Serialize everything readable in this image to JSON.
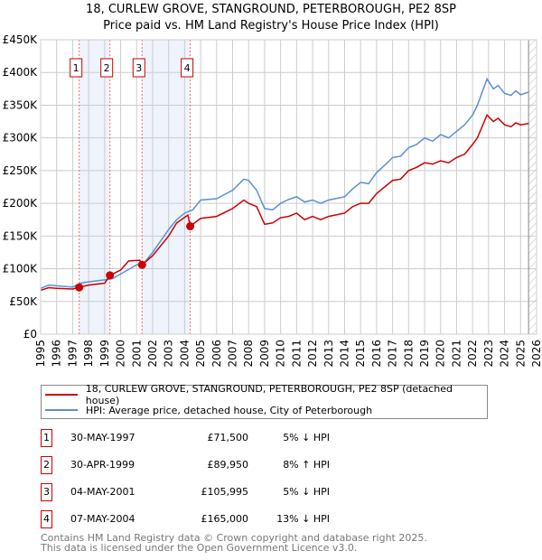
{
  "chart_data": {
    "type": "line",
    "title": "18, CURLEW GROVE, STANGROUND, PETERBOROUGH, PE2 8SP",
    "subtitle": "Price paid vs. HM Land Registry's House Price Index (HPI)",
    "xlim": [
      1995,
      2026
    ],
    "ylim": [
      0,
      450000
    ],
    "yticks": [
      0,
      50000,
      100000,
      150000,
      200000,
      250000,
      300000,
      350000,
      400000,
      450000
    ],
    "ytick_labels": [
      "£0",
      "£50K",
      "£100K",
      "£150K",
      "£200K",
      "£250K",
      "£300K",
      "£350K",
      "£400K",
      "£450K"
    ],
    "xticks": [
      "1995",
      "1996",
      "1997",
      "1998",
      "1999",
      "2000",
      "2001",
      "2002",
      "2003",
      "2004",
      "2005",
      "2006",
      "2007",
      "2008",
      "2009",
      "2010",
      "2011",
      "2012",
      "2013",
      "2014",
      "2015",
      "2016",
      "2017",
      "2018",
      "2019",
      "2020",
      "2021",
      "2022",
      "2023",
      "2024",
      "2025",
      "2026"
    ],
    "grid": true,
    "forecast_start": 2025.5,
    "series": [
      {
        "name": "18, CURLEW GROVE, STANGROUND, PETERBOROUGH, PE2 8SP (detached house)",
        "color": "#cc0000",
        "x": [
          1995,
          1995.5,
          1996,
          1997,
          1997.4,
          1998,
          1999,
          1999.33,
          2000,
          2000.5,
          2001.2,
          2001.34,
          2002,
          2003,
          2003.5,
          2004.2,
          2004.35,
          2005,
          2006,
          2007,
          2007.7,
          2008,
          2008.5,
          2009,
          2009.5,
          2010,
          2010.5,
          2011,
          2011.5,
          2012,
          2012.5,
          2013,
          2014,
          2014.5,
          2015,
          2015.5,
          2016,
          2016.5,
          2017,
          2017.5,
          2018,
          2018.5,
          2019,
          2019.5,
          2020,
          2020.5,
          2021,
          2021.5,
          2022,
          2022.3,
          2022.9,
          2023.3,
          2023.6,
          2024,
          2024.4,
          2024.7,
          2025,
          2025.5
        ],
        "y": [
          67000,
          71000,
          70000,
          69000,
          71500,
          75000,
          78000,
          89950,
          98000,
          112000,
          113000,
          105995,
          120000,
          150000,
          170000,
          182000,
          165000,
          177000,
          180000,
          192000,
          205000,
          200000,
          195000,
          168000,
          170000,
          178000,
          180000,
          185000,
          175000,
          180000,
          175000,
          180000,
          185000,
          195000,
          200000,
          200000,
          215000,
          225000,
          235000,
          237000,
          250000,
          255000,
          262000,
          260000,
          265000,
          262000,
          270000,
          275000,
          290000,
          300000,
          335000,
          325000,
          330000,
          320000,
          317000,
          323000,
          320000,
          322000
        ]
      },
      {
        "name": "HPI: Average price, detached house, City of Peterborough",
        "color": "#5b8fd4",
        "x": [
          1995,
          1995.5,
          1996,
          1997,
          1997.5,
          1998,
          1999,
          1999.5,
          2000,
          2001,
          2001.5,
          2002,
          2003,
          2003.5,
          2004,
          2004.5,
          2005,
          2006,
          2007,
          2007.7,
          2008,
          2008.5,
          2009,
          2009.5,
          2010,
          2010.5,
          2011,
          2011.5,
          2012,
          2012.5,
          2013,
          2014,
          2014.5,
          2015,
          2015.5,
          2016,
          2016.5,
          2017,
          2017.5,
          2018,
          2018.5,
          2019,
          2019.5,
          2020,
          2020.5,
          2021,
          2021.5,
          2022,
          2022.3,
          2022.9,
          2023.3,
          2023.6,
          2024,
          2024.4,
          2024.7,
          2025,
          2025.5
        ],
        "y": [
          70000,
          75000,
          74000,
          72000,
          78000,
          80000,
          83000,
          85000,
          92000,
          106000,
          110000,
          125000,
          160000,
          175000,
          185000,
          190000,
          205000,
          207000,
          220000,
          237000,
          235000,
          220000,
          192000,
          190000,
          200000,
          206000,
          210000,
          202000,
          205000,
          200000,
          205000,
          210000,
          222000,
          232000,
          230000,
          247000,
          258000,
          270000,
          272000,
          285000,
          290000,
          300000,
          295000,
          305000,
          300000,
          310000,
          320000,
          335000,
          350000,
          390000,
          375000,
          380000,
          368000,
          365000,
          372000,
          366000,
          370000
        ]
      }
    ],
    "sales": [
      {
        "label": "1",
        "x": 1997.41,
        "y": 71500
      },
      {
        "label": "2",
        "x": 1999.33,
        "y": 89950
      },
      {
        "label": "3",
        "x": 2001.34,
        "y": 105995
      },
      {
        "label": "4",
        "x": 2004.35,
        "y": 165000
      }
    ]
  },
  "legend": {
    "property": "18, CURLEW GROVE, STANGROUND, PETERBOROUGH, PE2 8SP (detached house)",
    "hpi": "HPI: Average price, detached house, City of Peterborough"
  },
  "table": [
    {
      "num": "1",
      "date": "30-MAY-1997",
      "price": "£71,500",
      "hpi": "5% ↓ HPI"
    },
    {
      "num": "2",
      "date": "30-APR-1999",
      "price": "£89,950",
      "hpi": "8% ↑ HPI"
    },
    {
      "num": "3",
      "date": "04-MAY-2001",
      "price": "£105,995",
      "hpi": "5% ↓ HPI"
    },
    {
      "num": "4",
      "date": "07-MAY-2004",
      "price": "£165,000",
      "hpi": "13% ↓ HPI"
    }
  ],
  "footer": {
    "line1": "Contains HM Land Registry data © Crown copyright and database right 2025.",
    "line2": "This data is licensed under the Open Government Licence v3.0."
  }
}
